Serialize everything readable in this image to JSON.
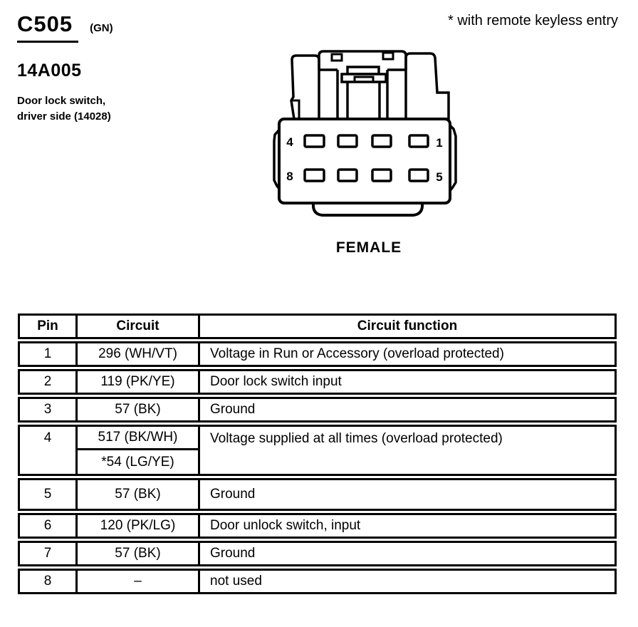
{
  "header": {
    "connector_id": "C505",
    "connector_color": "(GN)",
    "part_number": "14A005",
    "description_line1": "Door lock switch,",
    "description_line2": "driver side (14028)",
    "note": "* with remote keyless entry"
  },
  "connector": {
    "label": "FEMALE",
    "pin_labels": {
      "top_left": "4",
      "top_right": "1",
      "bottom_left": "8",
      "bottom_right": "5"
    }
  },
  "table": {
    "columns": [
      "Pin",
      "Circuit",
      "Circuit function"
    ],
    "rows": [
      {
        "pin": "1",
        "circuits": [
          "296 (WH/VT)"
        ],
        "function": "Voltage in Run or Accessory (overload protected)"
      },
      {
        "pin": "2",
        "circuits": [
          "119 (PK/YE)"
        ],
        "function": "Door lock switch input"
      },
      {
        "pin": "3",
        "circuits": [
          "57 (BK)"
        ],
        "function": "Ground"
      },
      {
        "pin": "4",
        "circuits": [
          "517 (BK/WH)",
          "*54 (LG/YE)"
        ],
        "function": "Voltage supplied at all times (overload protected)"
      },
      {
        "pin": "5",
        "circuits": [
          "57 (BK)"
        ],
        "function": "Ground"
      },
      {
        "pin": "6",
        "circuits": [
          "120 (PK/LG)"
        ],
        "function": "Door unlock switch, input"
      },
      {
        "pin": "7",
        "circuits": [
          "57 (BK)"
        ],
        "function": "Ground"
      },
      {
        "pin": "8",
        "circuits": [
          "–"
        ],
        "function": "not used"
      }
    ]
  },
  "colors": {
    "ink": "#000000",
    "paper": "#ffffff"
  }
}
